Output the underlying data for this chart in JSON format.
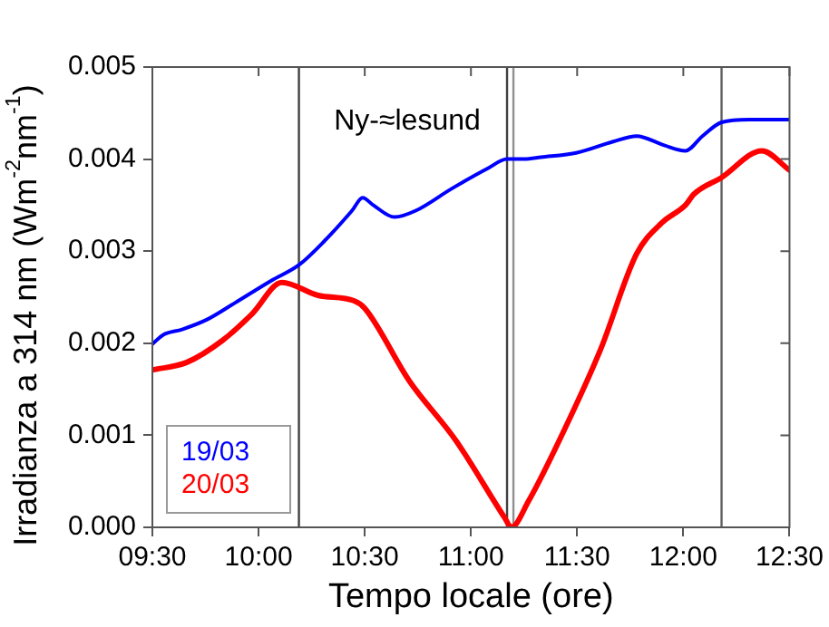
{
  "chart_data": {
    "type": "line",
    "xlabel": "Tempo locale (ore)",
    "ylabel": "Irradianza a 314 nm (Wm$^{-2}$nm$^{-1}$)",
    "annotations": [
      "Ny-≈lesund"
    ],
    "xlim": [
      9.5,
      12.5
    ],
    "xticks": [
      {
        "value": 9.5,
        "label": "09:30"
      },
      {
        "value": 10,
        "label": "10:00"
      },
      {
        "value": 10.5,
        "label": "10:30"
      },
      {
        "value": 11,
        "label": "11:00"
      },
      {
        "value": 11.5,
        "label": "11:30"
      },
      {
        "value": 12,
        "label": "12:00"
      },
      {
        "value": 12.5,
        "label": "12:30"
      }
    ],
    "ylim": [
      0,
      0.005
    ],
    "yticks": [
      {
        "value": 0,
        "label": "0.000"
      },
      {
        "value": 0.001,
        "label": "0.001"
      },
      {
        "value": 0.002,
        "label": "0.002"
      },
      {
        "value": 0.003,
        "label": "0.003"
      },
      {
        "value": 0.004,
        "label": "0.004"
      },
      {
        "value": 0.005,
        "label": "0.005"
      }
    ],
    "grid": false,
    "legend": "bottom left",
    "marker": "none",
    "line_style": "solid",
    "ref_lines": [
      {
        "axis": "x",
        "value": 10.19,
        "color": "#404040"
      },
      {
        "axis": "x",
        "value": 11.17,
        "color": "#404040"
      },
      {
        "axis": "x",
        "value": 11.2,
        "color": "#909090"
      },
      {
        "axis": "x",
        "value": 12.18,
        "color": "#606060"
      }
    ],
    "series": [
      {
        "name": "19/03",
        "color": "#0000ff",
        "x": [
          9.5,
          9.55,
          9.64,
          9.76,
          9.89,
          10.06,
          10.19,
          10.31,
          10.44,
          10.49,
          10.54,
          10.64,
          10.74,
          10.91,
          11.08,
          11.17,
          11.25,
          11.33,
          11.5,
          11.67,
          11.78,
          11.91,
          12.01,
          12.09,
          12.18,
          12.31,
          12.5
        ],
        "values": [
          0.00199,
          0.00209,
          0.00215,
          0.00226,
          0.00244,
          0.00268,
          0.00285,
          0.00311,
          0.00344,
          0.00358,
          0.0035,
          0.00337,
          0.00344,
          0.00368,
          0.0039,
          0.004,
          0.004,
          0.00402,
          0.00407,
          0.00419,
          0.00425,
          0.00415,
          0.00409,
          0.00425,
          0.0044,
          0.00443,
          0.00443
        ]
      },
      {
        "name": "20/03",
        "color": "#ff0000",
        "x": [
          9.5,
          9.66,
          9.83,
          9.97,
          10.11,
          10.28,
          10.45,
          10.5,
          10.71,
          10.93,
          11.16,
          11.19,
          11.27,
          11.44,
          11.61,
          11.78,
          11.9,
          12.01,
          12.05,
          12.18,
          12.37,
          12.5
        ],
        "values": [
          0.00171,
          0.00179,
          0.00203,
          0.00232,
          0.00266,
          0.00252,
          0.00246,
          0.00238,
          0.00159,
          0.00094,
          0.0001,
          0,
          0.00028,
          0.00106,
          0.00193,
          0.00297,
          0.00331,
          0.0035,
          0.00362,
          0.0038,
          0.00409,
          0.00388
        ]
      }
    ]
  }
}
